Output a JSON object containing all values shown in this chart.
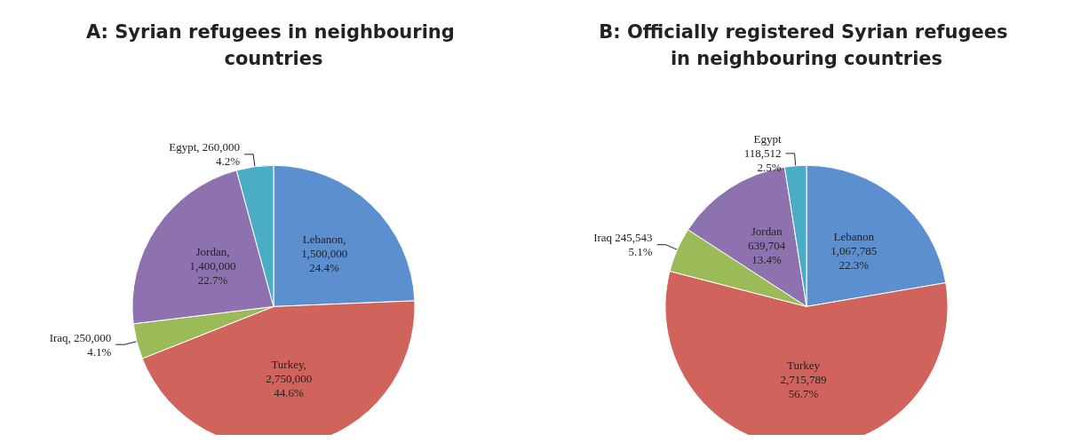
{
  "chart_data": [
    {
      "type": "pie",
      "title": "A: Syrian refugees in neighbouring countries",
      "categories": [
        "Lebanon",
        "Turkey",
        "Iraq",
        "Jordan",
        "Egypt"
      ],
      "values": [
        1500000,
        2750000,
        250000,
        1400000,
        260000
      ],
      "value_labels": [
        ",\n1,500,000\n24.4%",
        ",\n2,750,000\n44.6%",
        ", 250,000\n4.1%",
        ",\n1,400,000\n22.7%",
        ", 260,000\n4.2%"
      ],
      "colors": [
        "#5b8fd0",
        "#d0635c",
        "#9bbb59",
        "#8e72b0",
        "#4bacc6"
      ]
    },
    {
      "type": "pie",
      "title": "B: Officially registered Syrian refugees in neighbouring countries",
      "categories": [
        "Lebanon",
        "Turkey",
        "Iraq",
        "Jordan",
        "Egypt"
      ],
      "values": [
        1067785,
        2715789,
        245543,
        639704,
        118512
      ],
      "value_labels": [
        "\n1,067,785\n22.3%",
        "\n2,715,789\n56.7%",
        " 245,543\n5.1%",
        "\n639,704\n13.4%",
        "\n118,512\n2.5%"
      ],
      "colors": [
        "#5b8fd0",
        "#d0635c",
        "#9bbb59",
        "#8e72b0",
        "#4bacc6"
      ]
    }
  ]
}
